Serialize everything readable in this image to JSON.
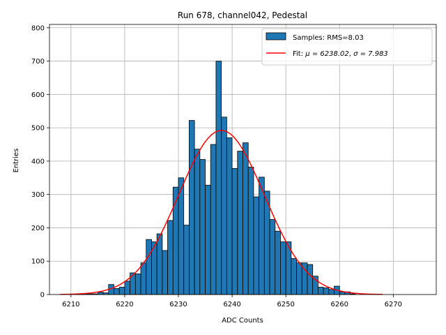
{
  "chart_data": {
    "type": "bar",
    "title": "Run 678, channel042, Pedestal",
    "xlabel": "ADC Counts",
    "ylabel": "Entries",
    "xlim": [
      6206,
      6278
    ],
    "ylim": [
      0,
      810
    ],
    "grid": true,
    "legend_position": "top-right",
    "x_ticks": [
      6210,
      6220,
      6230,
      6240,
      6250,
      6260,
      6270
    ],
    "y_ticks": [
      0,
      100,
      200,
      300,
      400,
      500,
      600,
      700,
      800
    ],
    "histogram": {
      "name": "Samples: RMS=8.03",
      "color": "#1f77b4",
      "edge_color": "#000000",
      "bin_width": 1,
      "bin_starts": [
        6211,
        6212,
        6213,
        6214,
        6215,
        6216,
        6217,
        6218,
        6219,
        6220,
        6221,
        6222,
        6223,
        6224,
        6225,
        6226,
        6227,
        6228,
        6229,
        6230,
        6231,
        6232,
        6233,
        6234,
        6235,
        6236,
        6237,
        6238,
        6239,
        6240,
        6241,
        6242,
        6243,
        6244,
        6245,
        6246,
        6247,
        6248,
        6249,
        6250,
        6251,
        6252,
        6253,
        6254,
        6255,
        6256,
        6257,
        6258,
        6259,
        6260,
        6261,
        6262
      ],
      "counts": [
        1,
        1,
        2,
        2,
        7,
        5,
        30,
        18,
        22,
        40,
        65,
        62,
        95,
        165,
        158,
        182,
        132,
        222,
        322,
        350,
        208,
        522,
        436,
        405,
        328,
        450,
        700,
        532,
        470,
        378,
        430,
        455,
        382,
        293,
        352,
        310,
        225,
        190,
        158,
        158,
        108,
        95,
        95,
        90,
        55,
        22,
        20,
        15,
        25,
        8,
        8,
        2
      ]
    },
    "fit": {
      "name": "Fit: μ = 6238.02, σ = 7.983",
      "label_prefix": "Fit: ",
      "mu_label": "μ = 6238.02",
      "sigma_label": "σ = 7.983",
      "color": "#ff0000",
      "mu": 6238.02,
      "sigma": 7.983,
      "amplitude": 492,
      "x_range": [
        6208,
        6268
      ]
    }
  }
}
